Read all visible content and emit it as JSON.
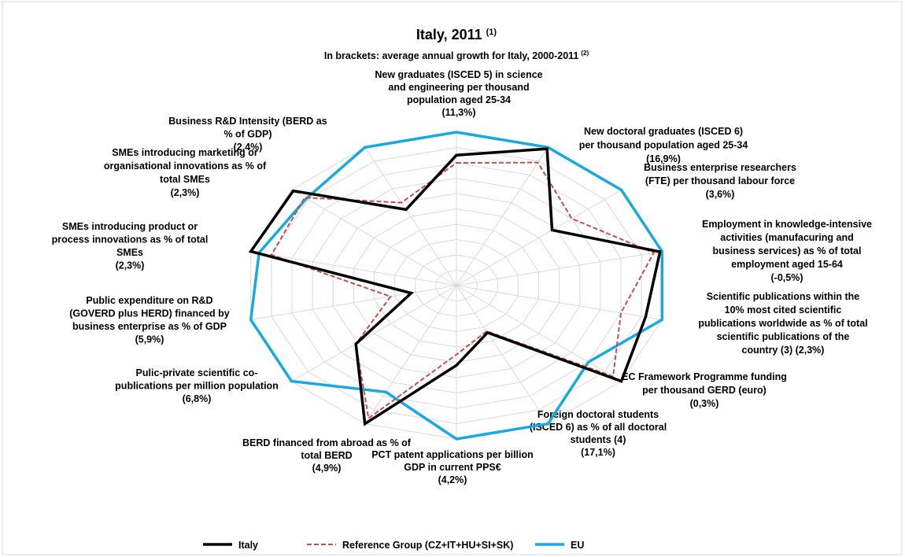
{
  "chart_data": {
    "type": "radar",
    "title": "Italy, 2011",
    "title_note": "(1)",
    "subtitle": "In brackets: average annual growth for Italy, 2000-2011",
    "subtitle_note": "(2)",
    "categories": [
      [
        "New graduates (ISCED 5) in science",
        "and engineering per thousand",
        "population aged 25-34",
        "(11,3%)"
      ],
      [
        "New doctoral graduates (ISCED 6)",
        "per thousand population aged 25-34",
        "(16,9%)"
      ],
      [
        "Business enterprise researchers",
        "(FTE) per thousand labour force",
        "(3,6%)"
      ],
      [
        "Employment in knowledge-intensive",
        "activities (manufacuring and",
        "business services) as % of total",
        "employment aged 15-64",
        "(-0,5%)"
      ],
      [
        "Scientific publications within the",
        "10% most cited scientific",
        "publications worldwide as % of total",
        "scientific publications of the",
        "country (3) (2,3%)"
      ],
      [
        "EC Framework Programme funding",
        "per thousand GERD (euro)",
        "(0,3%)"
      ],
      [
        "Foreign doctoral students",
        "(ISCED 6) as % of all doctoral",
        "students (4)",
        "(17,1%)"
      ],
      [
        "PCT patent applications per billion",
        "GDP in current PPS€",
        "(4,2%)"
      ],
      [
        "BERD financed from abroad as % of",
        "total BERD",
        "(4,9%)"
      ],
      [
        "Pulic-private scientific co-",
        "publications per million population",
        "(6,8%)"
      ],
      [
        "Public expenditure on R&D",
        "(GOVERD plus HERD) financed by",
        "business enterprise as % of GDP",
        "(5,9%)"
      ],
      [
        "SMEs introducing product or",
        "process innovations as % of total",
        "SMEs",
        "(2,3%)"
      ],
      [
        "SMEs introducing marketing or",
        "organisational innovations as % of",
        "total SMEs",
        "(2,3%)"
      ],
      [
        "Business R&D Intensity (BERD as",
        "% of GDP)",
        "(2,4%)"
      ]
    ],
    "series": [
      {
        "name": "Italy",
        "color": "#000000",
        "dash": false,
        "values": [
          0.85,
          0.99,
          0.58,
          0.99,
          0.92,
          1.0,
          0.34,
          0.52,
          1.0,
          0.61,
          0.22,
          1.0,
          0.99,
          0.55
        ]
      },
      {
        "name": "Reference Group (CZ+IT+HU+SI+SK)",
        "color": "#c0504d",
        "dash": true,
        "values": [
          0.8,
          0.89,
          0.7,
          0.96,
          0.8,
          0.95,
          0.33,
          0.45,
          0.96,
          0.61,
          0.32,
          0.9,
          0.92,
          0.6
        ]
      },
      {
        "name": "EU",
        "color": "#1aa8e0",
        "dash": false,
        "values": [
          1,
          1,
          1,
          1,
          1,
          0.8,
          1,
          1,
          0.77,
          1,
          1,
          0.96,
          0.91,
          1
        ]
      }
    ],
    "ylim": [
      0,
      1
    ],
    "yticks": [
      0,
      0.1,
      0.2,
      0.3,
      0.4,
      0.5,
      0.6,
      0.7,
      0.8,
      0.9,
      1
    ],
    "grid": true,
    "legend": "bottom"
  }
}
